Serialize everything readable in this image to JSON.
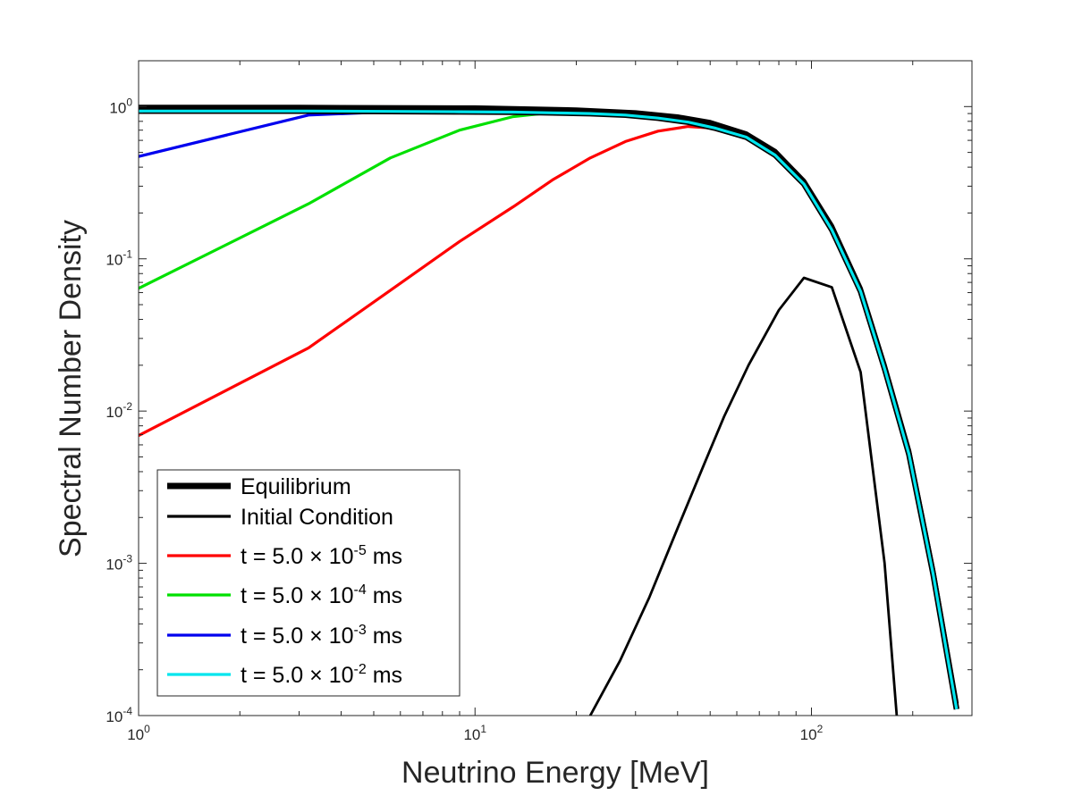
{
  "chart_data": {
    "type": "line",
    "xlabel": "Neutrino Energy [MeV]",
    "ylabel": "Spectral Number Density",
    "xscale": "log",
    "yscale": "log",
    "xlim": [
      1,
      300
    ],
    "ylim": [
      0.0001,
      2
    ],
    "x_ticks": [
      {
        "base": "10",
        "exp": "0",
        "value": 1
      },
      {
        "base": "10",
        "exp": "1",
        "value": 10
      },
      {
        "base": "10",
        "exp": "2",
        "value": 100
      }
    ],
    "y_ticks": [
      {
        "base": "10",
        "exp": "-4",
        "value": 0.0001
      },
      {
        "base": "10",
        "exp": "-3",
        "value": 0.001
      },
      {
        "base": "10",
        "exp": "-2",
        "value": 0.01
      },
      {
        "base": "10",
        "exp": "-1",
        "value": 0.1
      },
      {
        "base": "10",
        "exp": "0",
        "value": 1
      }
    ],
    "grid": false,
    "legend_position": "bottom-left",
    "series": [
      {
        "name": "Equilibrium",
        "color": "#000000",
        "style": "thick",
        "x": [
          1,
          3,
          10,
          20,
          30,
          40,
          50,
          64,
          78,
          95,
          115,
          140,
          165,
          195,
          230,
          270
        ],
        "y": [
          0.995,
          0.993,
          0.985,
          0.955,
          0.915,
          0.86,
          0.79,
          0.665,
          0.51,
          0.325,
          0.165,
          0.064,
          0.02,
          0.0055,
          0.0009,
          0.00012
        ]
      },
      {
        "name": "Initial Condition",
        "color": "#000000",
        "style": "thin",
        "x": [
          22,
          27,
          33,
          40,
          48,
          55,
          65,
          80,
          95,
          115,
          140,
          165,
          180
        ],
        "y": [
          0.0001,
          0.00023,
          0.0006,
          0.0017,
          0.0045,
          0.0092,
          0.02,
          0.046,
          0.075,
          0.065,
          0.018,
          0.001,
          9e-05
        ]
      },
      {
        "name": "t = 5.0 × 10⁻⁵ ms",
        "label_text": "t = 5.0 ",
        "label_times": "×",
        "label_base": " 10",
        "label_exp": "-5",
        "label_unit": " ms",
        "color": "#ff0000",
        "style": "normal",
        "x": [
          1,
          3.2,
          5.6,
          9,
          13,
          17,
          22,
          28,
          35,
          43,
          52,
          64,
          78,
          95,
          115,
          140,
          165,
          195,
          230,
          270
        ],
        "y": [
          0.0069,
          0.026,
          0.062,
          0.13,
          0.22,
          0.33,
          0.46,
          0.59,
          0.69,
          0.74,
          0.72,
          0.63,
          0.48,
          0.31,
          0.155,
          0.061,
          0.019,
          0.0052,
          0.00085,
          0.00011
        ]
      },
      {
        "name": "t = 5.0 × 10⁻⁴ ms",
        "label_text": "t = 5.0 ",
        "label_times": "×",
        "label_base": " 10",
        "label_exp": "-4",
        "label_unit": " ms",
        "color": "#00e000",
        "style": "normal",
        "x": [
          1,
          3.2,
          5.6,
          9,
          13,
          17,
          22,
          28,
          35,
          43,
          52,
          64,
          78,
          95,
          115,
          140,
          165,
          195,
          230,
          270
        ],
        "y": [
          0.064,
          0.23,
          0.46,
          0.7,
          0.86,
          0.915,
          0.905,
          0.88,
          0.84,
          0.79,
          0.72,
          0.63,
          0.48,
          0.31,
          0.155,
          0.061,
          0.019,
          0.0052,
          0.00085,
          0.00011
        ]
      },
      {
        "name": "t = 5.0 × 10⁻³ ms",
        "label_text": "t = 5.0 ",
        "label_times": "×",
        "label_base": " 10",
        "label_exp": "-3",
        "label_unit": " ms",
        "color": "#0000ee",
        "style": "normal",
        "x": [
          1,
          3.2,
          5.6,
          9,
          13,
          17,
          22,
          28,
          35,
          43,
          52,
          64,
          78,
          95,
          115,
          140,
          165,
          195,
          230,
          270
        ],
        "y": [
          0.47,
          0.88,
          0.925,
          0.925,
          0.92,
          0.91,
          0.9,
          0.88,
          0.84,
          0.79,
          0.72,
          0.63,
          0.48,
          0.31,
          0.155,
          0.061,
          0.019,
          0.0052,
          0.00085,
          0.00011
        ]
      },
      {
        "name": "t = 5.0 × 10⁻² ms",
        "label_text": "t = 5.0 ",
        "label_times": "×",
        "label_base": " 10",
        "label_exp": "-2",
        "label_unit": " ms",
        "color": "#00e5ee",
        "style": "normal",
        "x": [
          1,
          3.2,
          5.6,
          9,
          13,
          17,
          22,
          28,
          35,
          43,
          52,
          64,
          78,
          95,
          115,
          140,
          165,
          195,
          230,
          270
        ],
        "y": [
          0.935,
          0.935,
          0.93,
          0.925,
          0.92,
          0.91,
          0.9,
          0.88,
          0.84,
          0.79,
          0.72,
          0.63,
          0.48,
          0.31,
          0.155,
          0.061,
          0.019,
          0.0052,
          0.00085,
          0.00011
        ]
      }
    ]
  }
}
